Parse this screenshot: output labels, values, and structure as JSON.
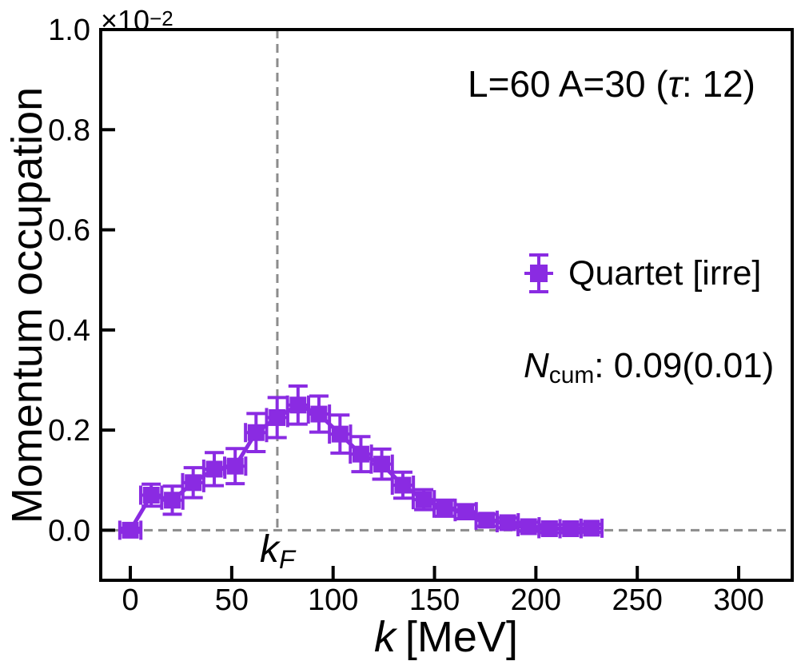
{
  "colors": {
    "series": "#8A2BE2",
    "dashed": "#8c8c8c",
    "axis": "#000000",
    "text": "#000000",
    "background": "#ffffff"
  },
  "axes": {
    "y_label": "Momentum occupation",
    "y_offset_base": "×10",
    "y_offset_exp": "−2",
    "x_label_var": "k",
    "x_label_unit": "[MeV]"
  },
  "annotations": {
    "params": {
      "prefix": "L=60 A=30 (",
      "tau": "τ",
      "suffix": ": 12)"
    },
    "ncum": {
      "var": "N",
      "sub": "cum",
      "rest": ": 0.09(0.01)"
    },
    "kf": {
      "var": "k",
      "sub": "F",
      "x_value": 72.5
    }
  },
  "legend": {
    "label": "Quartet [irre]"
  },
  "chart_data": {
    "type": "line",
    "title": "",
    "xlabel": "k [MeV]",
    "ylabel": "Momentum occupation",
    "y_scale_note": "y values are in units of 1e-2 (axis offset label ×10⁻²)",
    "xlim": [
      -14.6,
      326.4
    ],
    "ylim": [
      -0.1,
      1.0
    ],
    "xticks": [
      0,
      50,
      100,
      150,
      200,
      250,
      300
    ],
    "yticks": [
      0.0,
      0.2,
      0.4,
      0.6,
      0.8,
      1.0
    ],
    "ytick_labels": [
      "0.0",
      "0.2",
      "0.4",
      "0.6",
      "0.8",
      "1.0"
    ],
    "grid": false,
    "legend_position": "center-right",
    "reference_lines": {
      "vertical_x": 72.5,
      "vertical_label": "kF",
      "horizontal_y": 0.0
    },
    "series": [
      {
        "name": "Quartet [irre]",
        "marker": "square",
        "color": "#8A2BE2",
        "x": [
          0,
          10.3,
          20.7,
          31.0,
          41.4,
          51.7,
          62.0,
          72.4,
          82.7,
          93.0,
          103.4,
          113.7,
          124.0,
          134.4,
          144.7,
          155.0,
          165.4,
          175.7,
          186.1,
          196.4,
          206.7,
          217.1,
          227.4
        ],
        "y": [
          0.0,
          0.07,
          0.06,
          0.095,
          0.122,
          0.128,
          0.195,
          0.225,
          0.25,
          0.232,
          0.192,
          0.152,
          0.132,
          0.09,
          0.061,
          0.044,
          0.037,
          0.02,
          0.015,
          0.007,
          0.003,
          0.003,
          0.004
        ],
        "yerr": [
          0.004,
          0.022,
          0.028,
          0.03,
          0.033,
          0.035,
          0.038,
          0.04,
          0.038,
          0.036,
          0.038,
          0.035,
          0.03,
          0.026,
          0.02,
          0.016,
          0.014,
          0.012,
          0.01,
          0.009,
          0.008,
          0.008,
          0.008
        ],
        "xerr": 5.2
      }
    ]
  }
}
